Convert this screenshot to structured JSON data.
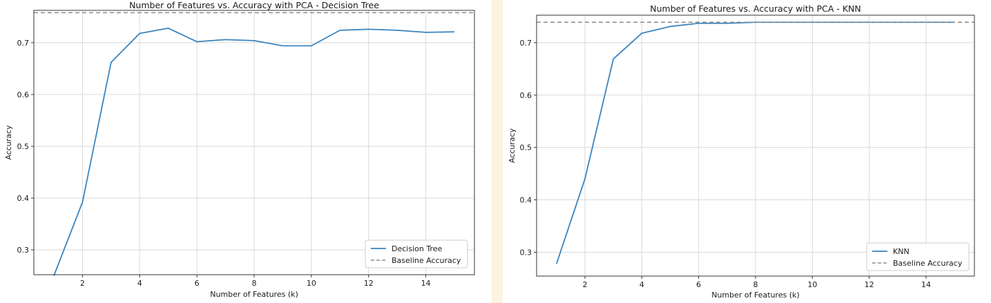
{
  "chart_data": [
    {
      "type": "line",
      "title": "Number of Features vs. Accuracy with PCA - Decision Tree",
      "xlabel": "Number of Features (k)",
      "ylabel": "Accuracy",
      "xlim": [
        0.3,
        15.7
      ],
      "ylim": [
        0.252,
        0.7625
      ],
      "xticks": [
        2,
        4,
        6,
        8,
        10,
        12,
        14
      ],
      "yticks": [
        0.3,
        0.4,
        0.5,
        0.6,
        0.7
      ],
      "grid": true,
      "legend_position": "lower right",
      "x": [
        1,
        2,
        3,
        4,
        5,
        6,
        7,
        8,
        9,
        10,
        11,
        12,
        13,
        14,
        15
      ],
      "series": [
        {
          "name": "Decision Tree",
          "style": "solid",
          "color": "#3a84bf",
          "values": [
            0.25,
            0.392,
            0.662,
            0.718,
            0.728,
            0.702,
            0.706,
            0.704,
            0.694,
            0.694,
            0.724,
            0.726,
            0.724,
            0.72,
            0.721
          ]
        },
        {
          "name": "Baseline Accuracy",
          "style": "dashed",
          "color": "#8c8c8c",
          "value": 0.758
        }
      ]
    },
    {
      "type": "line",
      "title": "Number of Features vs. Accuracy with PCA - KNN",
      "xlabel": "Number of Features (k)",
      "ylabel": "Accuracy",
      "xlim": [
        0.3,
        15.7
      ],
      "ylim": [
        0.2545,
        0.7525
      ],
      "xticks": [
        2,
        4,
        6,
        8,
        10,
        12,
        14
      ],
      "yticks": [
        0.3,
        0.4,
        0.5,
        0.6,
        0.7
      ],
      "grid": true,
      "legend_position": "lower right",
      "x": [
        1,
        2,
        3,
        4,
        5,
        6,
        7,
        8,
        9,
        10,
        11,
        12,
        13,
        14,
        15
      ],
      "series": [
        {
          "name": "KNN",
          "style": "solid",
          "color": "#3a84bf",
          "values": [
            0.278,
            0.44,
            0.669,
            0.718,
            0.731,
            0.737,
            0.737,
            0.739,
            0.739,
            0.739,
            0.739,
            0.739,
            0.739,
            0.739,
            0.739
          ]
        },
        {
          "name": "Baseline Accuracy",
          "style": "dashed",
          "color": "#8c8c8c",
          "value": 0.739
        }
      ]
    }
  ]
}
